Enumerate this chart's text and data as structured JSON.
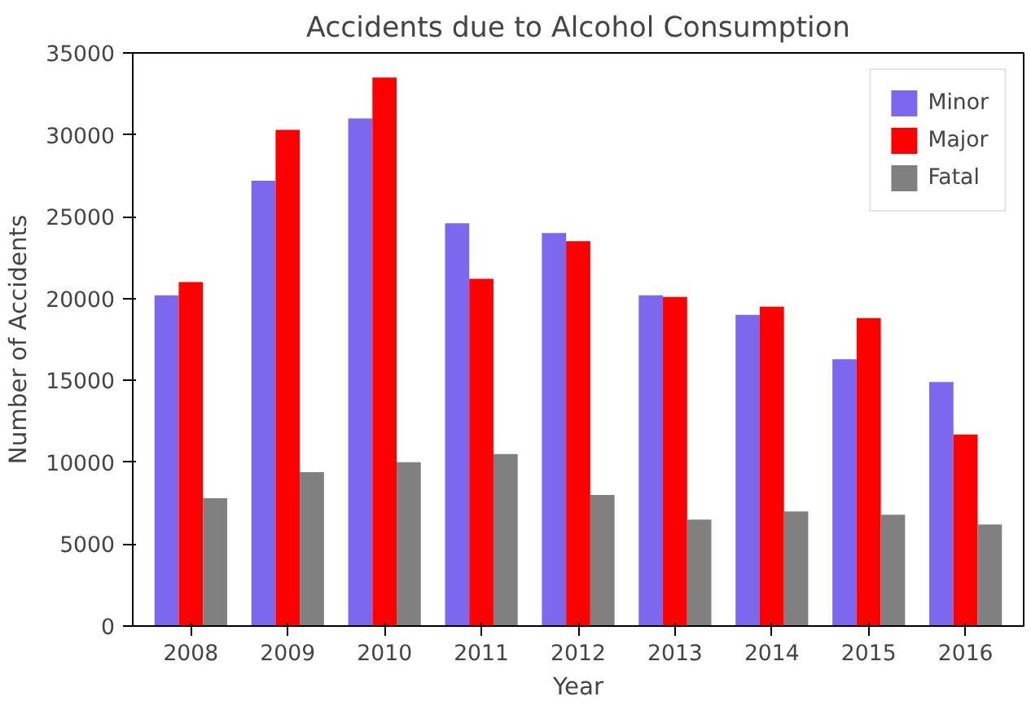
{
  "chart_data": {
    "type": "bar",
    "title": "Accidents due to Alcohol Consumption",
    "xlabel": "Year",
    "ylabel": "Number of Accidents",
    "categories": [
      "2008",
      "2009",
      "2010",
      "2011",
      "2012",
      "2013",
      "2014",
      "2015",
      "2016"
    ],
    "series": [
      {
        "name": "Minor",
        "color": "#7b68ee",
        "values": [
          20200,
          27200,
          31000,
          24600,
          24000,
          20200,
          19000,
          16300,
          14900
        ]
      },
      {
        "name": "Major",
        "color": "#ff0000",
        "values": [
          21000,
          30300,
          33500,
          21200,
          23500,
          20100,
          19500,
          18800,
          11700
        ]
      },
      {
        "name": "Fatal",
        "color": "#808080",
        "values": [
          7800,
          9400,
          10000,
          10500,
          8000,
          6500,
          7000,
          6800,
          6200
        ]
      }
    ],
    "ylim": [
      0,
      35000
    ],
    "yticks": [
      0,
      5000,
      10000,
      15000,
      20000,
      25000,
      30000,
      35000
    ],
    "grid": false,
    "legend": "top right"
  }
}
